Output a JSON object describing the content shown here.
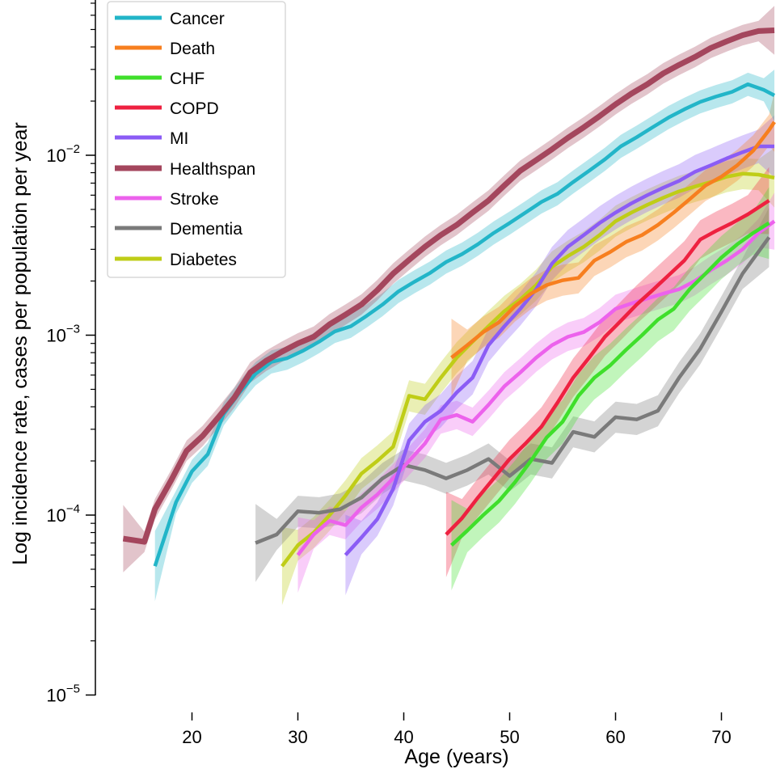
{
  "chart_data": {
    "type": "line",
    "title": "",
    "xlabel": "Age (years)",
    "ylabel": "Log incidence rate, cases per population per year",
    "yscale": "log",
    "xlim": [
      12,
      75
    ],
    "ylim": [
      1e-05,
      0.07
    ],
    "x_ticks": [
      {
        "value": 20,
        "label": "20"
      },
      {
        "value": 30,
        "label": "30"
      },
      {
        "value": 40,
        "label": "40"
      },
      {
        "value": 50,
        "label": "50"
      },
      {
        "value": 60,
        "label": "60"
      },
      {
        "value": 70,
        "label": "70"
      }
    ],
    "y_ticks": [
      {
        "value": 1e-05,
        "base": "10",
        "exp": "−5"
      },
      {
        "value": 0.0001,
        "base": "10",
        "exp": "−4"
      },
      {
        "value": 0.001,
        "base": "10",
        "exp": "−3"
      },
      {
        "value": 0.01,
        "base": "10",
        "exp": "−2"
      }
    ],
    "legend_position": "top-left",
    "grid": false,
    "series": [
      {
        "name": "Cancer",
        "color": "#22b5c8",
        "band": 0.16,
        "x": [
          16.5,
          18.5,
          20,
          21.5,
          23,
          24.5,
          26,
          27.5,
          29,
          30.5,
          32,
          33.5,
          35,
          36.5,
          38,
          39.5,
          41,
          42.5,
          44,
          45.5,
          47,
          48.5,
          50,
          51.5,
          53,
          54.5,
          56,
          57.5,
          59,
          60.5,
          62,
          63.5,
          65,
          66.5,
          68,
          69.5,
          71,
          72.5,
          74,
          75
        ],
        "y": [
          5.2e-05,
          0.000118,
          0.000175,
          0.000218,
          0.000365,
          0.00048,
          0.00061,
          0.00071,
          0.000745,
          0.00082,
          0.00092,
          0.00105,
          0.00112,
          0.00128,
          0.00148,
          0.00175,
          0.00198,
          0.00222,
          0.00255,
          0.00282,
          0.0032,
          0.0037,
          0.0042,
          0.0048,
          0.0055,
          0.0061,
          0.0071,
          0.0082,
          0.0095,
          0.0112,
          0.0126,
          0.0143,
          0.0162,
          0.018,
          0.0198,
          0.0212,
          0.0225,
          0.0248,
          0.0231,
          0.0215
        ]
      },
      {
        "name": "Death",
        "color": "#f77f1f",
        "band": 0.22,
        "x": [
          44.5,
          46,
          47.5,
          49,
          50.5,
          52,
          53.5,
          55,
          56.5,
          58,
          59.5,
          61,
          62.5,
          64,
          65.5,
          67,
          68.5,
          70,
          71.5,
          73,
          74.5,
          75
        ],
        "y": [
          0.00075,
          0.00088,
          0.00104,
          0.00118,
          0.00145,
          0.0017,
          0.0019,
          0.00202,
          0.00208,
          0.0026,
          0.0029,
          0.0033,
          0.0036,
          0.0041,
          0.0048,
          0.0057,
          0.0068,
          0.0076,
          0.0088,
          0.0106,
          0.0138,
          0.0153
        ]
      },
      {
        "name": "CHF",
        "color": "#3fdf2b",
        "band": 0.32,
        "x": [
          44.5,
          46,
          47.5,
          49,
          50.5,
          52,
          53.5,
          55,
          56.5,
          58,
          59.5,
          61,
          62.5,
          64,
          65.5,
          67,
          68.5,
          70,
          71.5,
          73,
          74.5
        ],
        "y": [
          6.8e-05,
          8.2e-05,
          0.0001,
          0.00012,
          0.000152,
          0.0002,
          0.00027,
          0.00033,
          0.00046,
          0.00058,
          0.00068,
          0.00083,
          0.001,
          0.00122,
          0.0014,
          0.0018,
          0.0022,
          0.0027,
          0.0032,
          0.0037,
          0.0042
        ]
      },
      {
        "name": "COPD",
        "color": "#ee2140",
        "band": 0.28,
        "x": [
          44,
          45.5,
          47,
          48.5,
          50,
          51.5,
          53,
          54.5,
          56,
          57.5,
          59,
          60.5,
          62,
          63.5,
          65,
          66.5,
          68,
          69.5,
          71,
          72.5,
          74.5
        ],
        "y": [
          7.8e-05,
          9.6e-05,
          0.000125,
          0.00016,
          0.000205,
          0.00025,
          0.00031,
          0.00042,
          0.00058,
          0.00075,
          0.00098,
          0.0012,
          0.00148,
          0.00178,
          0.00215,
          0.0026,
          0.0034,
          0.0038,
          0.0042,
          0.0047,
          0.0056
        ]
      },
      {
        "name": "MI",
        "color": "#8b5cf5",
        "band": 0.24,
        "x": [
          34.5,
          36,
          37.5,
          39,
          40.5,
          42,
          43.5,
          45,
          46.5,
          48,
          49.5,
          51,
          52.5,
          54,
          55.5,
          57,
          58.5,
          60,
          61.5,
          63,
          64.5,
          66,
          67.5,
          69,
          70.5,
          72,
          73.5,
          75
        ],
        "y": [
          6e-05,
          7.5e-05,
          9.5e-05,
          0.00014,
          0.00026,
          0.00033,
          0.00038,
          0.00048,
          0.00058,
          0.00088,
          0.00112,
          0.0014,
          0.0018,
          0.0025,
          0.0031,
          0.0036,
          0.0042,
          0.0048,
          0.0054,
          0.006,
          0.0066,
          0.0072,
          0.0081,
          0.0088,
          0.0096,
          0.0104,
          0.0112,
          0.0112
        ]
      },
      {
        "name": "Healthspan",
        "color": "#a4465d",
        "band": 0.14,
        "x": [
          13.5,
          15.5,
          16.5,
          18,
          19.5,
          21,
          22.5,
          24,
          25.5,
          27,
          28.5,
          30,
          31.5,
          33,
          34.5,
          36,
          37.5,
          39,
          40.5,
          42,
          43.5,
          45,
          46.5,
          48,
          49.5,
          51,
          52.5,
          54,
          55.5,
          57,
          58.5,
          60,
          61.5,
          63,
          64.5,
          66,
          67.5,
          69,
          70.5,
          72,
          73.5,
          75
        ],
        "y": [
          7.4e-05,
          7.1e-05,
          0.000108,
          0.000155,
          0.000228,
          0.000275,
          0.00035,
          0.00045,
          0.00062,
          0.00072,
          0.00081,
          0.0009,
          0.00098,
          0.00115,
          0.0013,
          0.00148,
          0.00178,
          0.0022,
          0.00262,
          0.0031,
          0.0036,
          0.0041,
          0.0048,
          0.0056,
          0.0068,
          0.0082,
          0.0094,
          0.0108,
          0.0125,
          0.0143,
          0.0165,
          0.0192,
          0.022,
          0.0248,
          0.0285,
          0.0318,
          0.0352,
          0.0395,
          0.043,
          0.0465,
          0.049,
          0.0495
        ]
      },
      {
        "name": "Stroke",
        "color": "#ec62ec",
        "band": 0.2,
        "x": [
          30,
          31.5,
          33,
          34.5,
          36,
          37.5,
          39,
          40.5,
          42,
          43.5,
          45,
          46.5,
          48,
          49.5,
          51,
          52.5,
          54,
          55.5,
          57,
          58.5,
          60,
          61.5,
          63,
          64.5,
          66,
          67.5,
          69,
          70.5,
          72,
          73.5,
          75
        ],
        "y": [
          6e-05,
          7.8e-05,
          9.3e-05,
          8.8e-05,
          0.00011,
          0.00013,
          0.00016,
          0.0002,
          0.00025,
          0.00034,
          0.00036,
          0.00033,
          0.00041,
          0.00052,
          0.00062,
          0.00075,
          0.00088,
          0.00098,
          0.00104,
          0.00118,
          0.0014,
          0.0015,
          0.0016,
          0.0017,
          0.0018,
          0.002,
          0.0023,
          0.0026,
          0.003,
          0.0037,
          0.0043
        ]
      },
      {
        "name": "Dementia",
        "color": "#7a7a7a",
        "band": 0.22,
        "x": [
          26,
          28,
          30,
          32,
          34,
          36,
          38,
          40,
          42,
          44,
          46,
          48,
          50,
          52,
          54,
          56,
          58,
          60,
          62,
          64,
          66,
          68,
          70,
          72,
          74.5
        ],
        "y": [
          7e-05,
          7.8e-05,
          0.000105,
          0.000103,
          0.000108,
          0.000125,
          0.00016,
          0.00019,
          0.000178,
          0.00016,
          0.000178,
          0.000205,
          0.000165,
          0.000205,
          0.000195,
          0.00029,
          0.000272,
          0.00035,
          0.00034,
          0.00038,
          0.00058,
          0.00084,
          0.00135,
          0.0022,
          0.0035
        ]
      },
      {
        "name": "Diabetes",
        "color": "#bfcd17",
        "band": 0.22,
        "x": [
          28.5,
          30,
          31.5,
          33,
          34.5,
          36,
          37.5,
          39,
          40.5,
          42,
          43.5,
          45,
          46.5,
          48,
          49.5,
          51,
          52.5,
          54,
          55.5,
          57,
          58.5,
          60,
          61.5,
          63,
          64.5,
          66,
          67.5,
          69,
          70.5,
          72,
          73.5,
          75
        ],
        "y": [
          5.2e-05,
          6.8e-05,
          8e-05,
          0.0001,
          0.000128,
          0.00017,
          0.0002,
          0.00024,
          0.00046,
          0.00044,
          0.00058,
          0.00075,
          0.00092,
          0.00112,
          0.00136,
          0.00158,
          0.0019,
          0.0024,
          0.00275,
          0.0031,
          0.0036,
          0.0043,
          0.0048,
          0.0053,
          0.0058,
          0.0063,
          0.0067,
          0.0071,
          0.0076,
          0.0079,
          0.0078,
          0.0075
        ]
      }
    ]
  }
}
